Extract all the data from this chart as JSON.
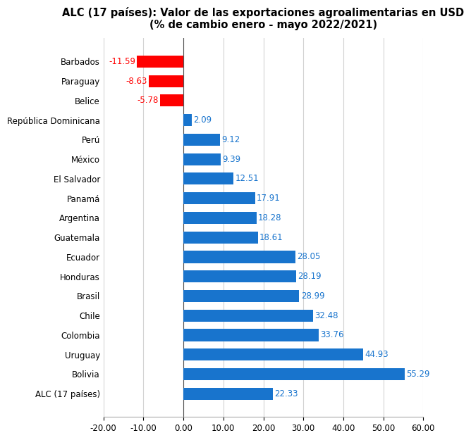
{
  "title_line1": "ALC (17 países): Valor de las exportaciones agroalimentarias en USD",
  "title_line2": "(% de cambio enero - mayo 2022/2021)",
  "categories": [
    "Barbados",
    "Paraguay",
    "Belice",
    "República Dominicana",
    "Perú",
    "México",
    "El Salvador",
    "Panamá",
    "Argentina",
    "Guatemala",
    "Ecuador",
    "Honduras",
    "Brasil",
    "Chile",
    "Colombia",
    "Uruguay",
    "Bolivia",
    "ALC (17 países)"
  ],
  "values": [
    -11.59,
    -8.63,
    -5.78,
    2.09,
    9.12,
    9.39,
    12.51,
    17.91,
    18.28,
    18.61,
    28.05,
    28.19,
    28.99,
    32.48,
    33.76,
    44.93,
    55.29,
    22.33
  ],
  "bar_colors": [
    "#FF0000",
    "#FF0000",
    "#FF0000",
    "#1874CD",
    "#1874CD",
    "#1874CD",
    "#1874CD",
    "#1874CD",
    "#1874CD",
    "#1874CD",
    "#1874CD",
    "#1874CD",
    "#1874CD",
    "#1874CD",
    "#1874CD",
    "#1874CD",
    "#1874CD",
    "#1874CD"
  ],
  "label_colors": [
    "#FF0000",
    "#FF0000",
    "#FF0000",
    "#1874CD",
    "#1874CD",
    "#1874CD",
    "#1874CD",
    "#1874CD",
    "#1874CD",
    "#1874CD",
    "#1874CD",
    "#1874CD",
    "#1874CD",
    "#1874CD",
    "#1874CD",
    "#1874CD",
    "#1874CD",
    "#1874CD"
  ],
  "xlim": [
    -20,
    60
  ],
  "xticks": [
    -20,
    -10,
    0,
    10,
    20,
    30,
    40,
    50,
    60
  ],
  "background_color": "#FFFFFF",
  "grid_color": "#D3D3D3",
  "title_fontsize": 10.5,
  "label_fontsize": 8.5,
  "tick_fontsize": 8.5,
  "bar_height": 0.62
}
